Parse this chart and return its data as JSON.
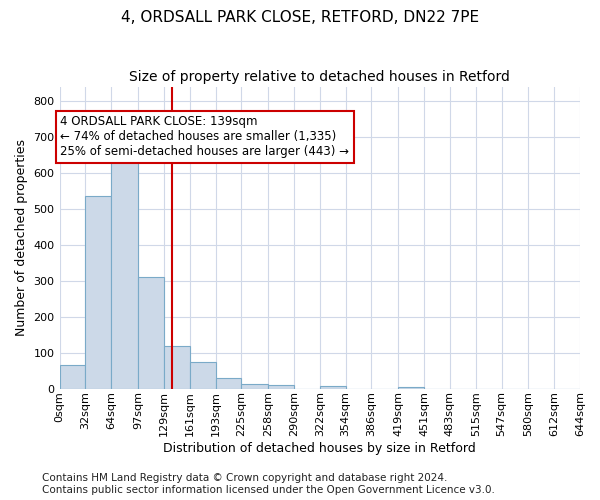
{
  "title1": "4, ORDSALL PARK CLOSE, RETFORD, DN22 7PE",
  "title2": "Size of property relative to detached houses in Retford",
  "xlabel": "Distribution of detached houses by size in Retford",
  "ylabel": "Number of detached properties",
  "footnote": "Contains HM Land Registry data © Crown copyright and database right 2024.\nContains public sector information licensed under the Open Government Licence v3.0.",
  "bin_edges": [
    0,
    32,
    64,
    97,
    129,
    161,
    193,
    225,
    258,
    290,
    322,
    354,
    386,
    419,
    451,
    483,
    515,
    547,
    580,
    612,
    644
  ],
  "bar_heights": [
    65,
    535,
    635,
    310,
    120,
    75,
    30,
    12,
    10,
    0,
    8,
    0,
    0,
    5,
    0,
    0,
    0,
    0,
    0,
    0
  ],
  "bar_color": "#ccd9e8",
  "bar_edge_color": "#7aaac8",
  "vline_x": 139,
  "vline_color": "#cc0000",
  "annotation_text": "4 ORDSALL PARK CLOSE: 139sqm\n← 74% of detached houses are smaller (1,335)\n25% of semi-detached houses are larger (443) →",
  "annotation_box_facecolor": "#ffffff",
  "annotation_box_edgecolor": "#cc0000",
  "ylim": [
    0,
    840
  ],
  "yticks": [
    0,
    100,
    200,
    300,
    400,
    500,
    600,
    700,
    800
  ],
  "fig_bg_color": "#ffffff",
  "plot_bg_color": "#ffffff",
  "grid_color": "#d0d8e8",
  "title1_fontsize": 11,
  "title2_fontsize": 10,
  "axis_label_fontsize": 9,
  "tick_label_fontsize": 8,
  "footnote_fontsize": 7.5
}
